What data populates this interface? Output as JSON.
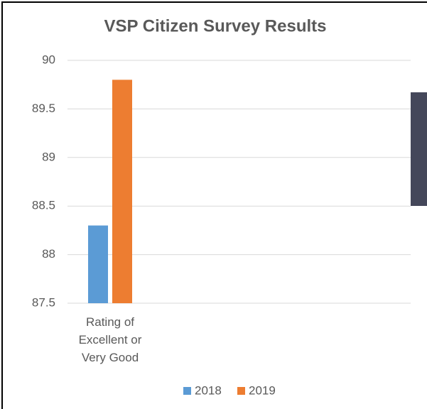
{
  "chart_data": {
    "type": "bar",
    "title": "VSP Citizen Survey Results",
    "categories": [
      "Rating of Excellent or Very Good"
    ],
    "series": [
      {
        "name": "2018",
        "color": "#5b9bd5",
        "values": [
          88.3
        ]
      },
      {
        "name": "2019",
        "color": "#ed7d31",
        "values": [
          89.8
        ]
      }
    ],
    "ylim": [
      87.5,
      90
    ],
    "yticks": [
      87.5,
      88,
      88.5,
      89,
      89.5,
      90
    ],
    "grid": true,
    "legend": "bottom"
  }
}
